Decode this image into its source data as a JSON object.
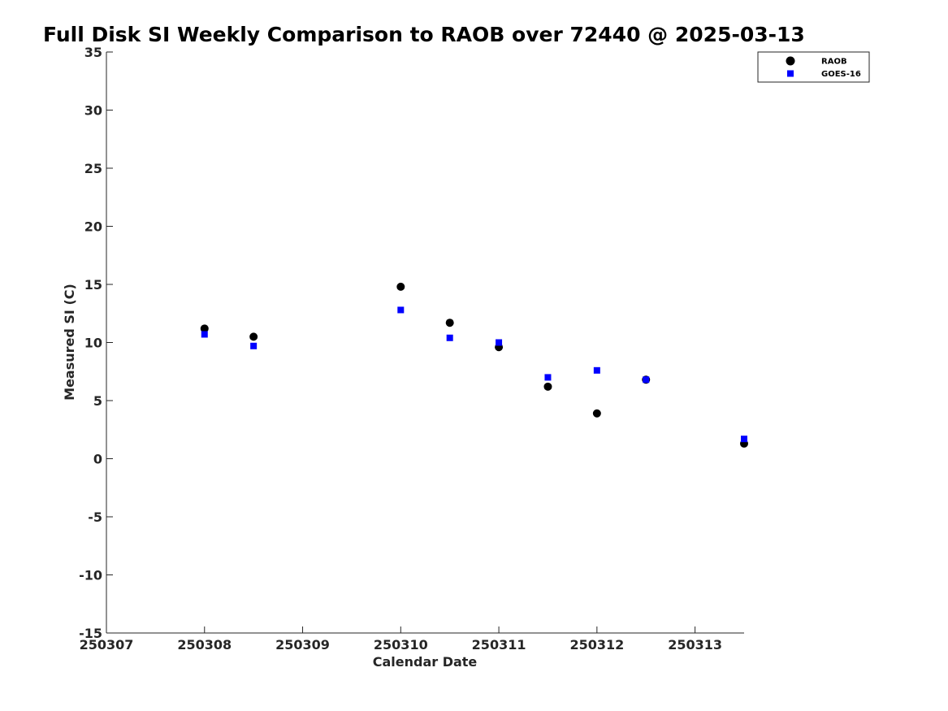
{
  "chart_data": {
    "type": "scatter",
    "title": "Full Disk SI Weekly Comparison to RAOB over 72440 @ 2025-03-13",
    "xlabel": "Calendar Date",
    "ylabel": "Measured SI (C)",
    "xlim": [
      250307,
      250313.5
    ],
    "ylim": [
      -15,
      35
    ],
    "xticks": [
      250307,
      250308,
      250309,
      250310,
      250311,
      250312,
      250313
    ],
    "xtick_labels": [
      "250307",
      "250308",
      "250309",
      "250310",
      "250311",
      "250312",
      "250313"
    ],
    "yticks": [
      -15,
      -10,
      -5,
      0,
      5,
      10,
      15,
      20,
      25,
      30,
      35
    ],
    "ytick_labels": [
      "-15",
      "-10",
      "-5",
      "0",
      "5",
      "10",
      "15",
      "20",
      "25",
      "30",
      "35"
    ],
    "grid": false,
    "legend_position": "top-right",
    "series": [
      {
        "name": "RAOB",
        "marker": "circle",
        "color": "#000000",
        "x": [
          250308,
          250308.5,
          250310,
          250310.5,
          250311,
          250311.5,
          250312,
          250312.5,
          250313.5
        ],
        "y": [
          11.2,
          10.5,
          14.8,
          11.7,
          9.6,
          6.2,
          3.9,
          6.8,
          1.3
        ]
      },
      {
        "name": "GOES-16",
        "marker": "square",
        "color": "#0000ff",
        "x": [
          250308,
          250308.5,
          250310,
          250310.5,
          250311,
          250311.5,
          250312,
          250312.5,
          250313.5
        ],
        "y": [
          10.7,
          9.7,
          12.8,
          10.4,
          10.0,
          7.0,
          7.6,
          6.8,
          1.7
        ]
      }
    ]
  }
}
